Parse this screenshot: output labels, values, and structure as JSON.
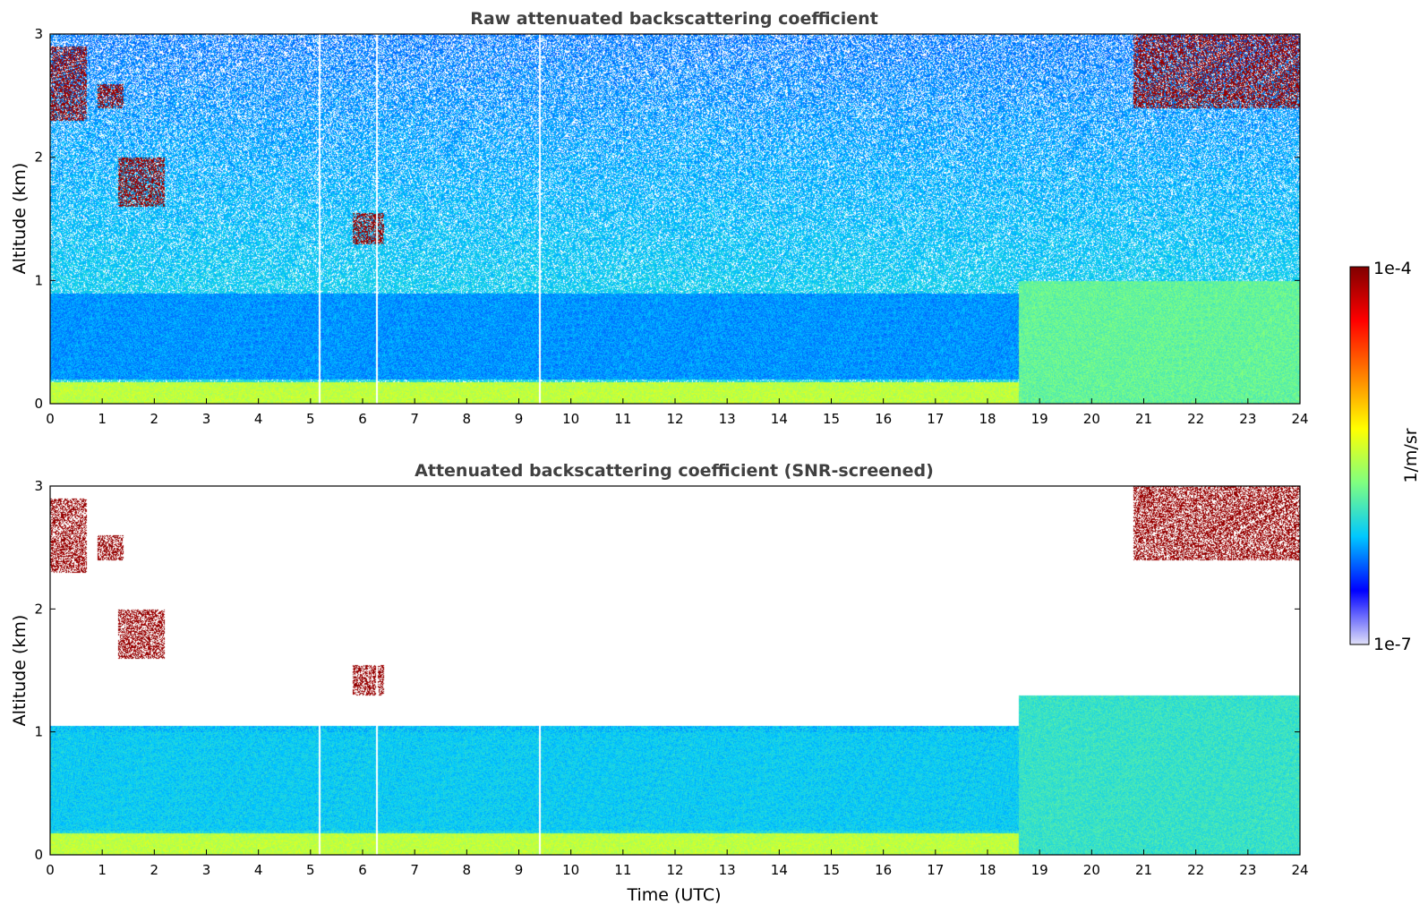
{
  "chart_data": [
    {
      "type": "heatmap",
      "title": "Raw attenuated backscattering coefficient",
      "xlabel": "",
      "ylabel": "Altitude (km)",
      "xlim": [
        0,
        24
      ],
      "ylim": [
        0,
        3
      ],
      "x_ticks": [
        "0",
        "1",
        "2",
        "3",
        "4",
        "5",
        "6",
        "7",
        "8",
        "9",
        "10",
        "11",
        "12",
        "13",
        "14",
        "15",
        "16",
        "17",
        "18",
        "19",
        "20",
        "21",
        "22",
        "23",
        "24"
      ],
      "y_ticks": [
        "0",
        "1",
        "2",
        "3"
      ],
      "screened": false,
      "gaps_utc": [
        5.15,
        6.25,
        9.38
      ],
      "features": [
        {
          "kind": "surface_layer",
          "x": [
            0,
            24
          ],
          "y": [
            0,
            0.18
          ],
          "level": 0.5
        },
        {
          "kind": "boundary_layer",
          "x": [
            0,
            18.6
          ],
          "y": [
            0.2,
            0.9
          ],
          "level": 0.25
        },
        {
          "kind": "boundary_layer",
          "x": [
            18.6,
            24
          ],
          "y": [
            0,
            1.0
          ],
          "level": 0.4
        },
        {
          "kind": "cloud",
          "x": [
            0,
            0.7
          ],
          "y": [
            2.3,
            2.9
          ],
          "level": 0.95
        },
        {
          "kind": "cloud",
          "x": [
            0.9,
            1.4
          ],
          "y": [
            2.4,
            2.6
          ],
          "level": 0.95
        },
        {
          "kind": "cloud",
          "x": [
            1.3,
            2.2
          ],
          "y": [
            1.6,
            2.0
          ],
          "level": 0.95
        },
        {
          "kind": "cloud",
          "x": [
            5.8,
            6.4
          ],
          "y": [
            1.3,
            1.55
          ],
          "level": 0.95
        },
        {
          "kind": "cloud",
          "x": [
            20.8,
            24
          ],
          "y": [
            2.4,
            3.0
          ],
          "level": 0.95
        }
      ]
    },
    {
      "type": "heatmap",
      "title": "Attenuated backscattering coefficient (SNR-screened)",
      "xlabel": "Time (UTC)",
      "ylabel": "Altitude (km)",
      "xlim": [
        0,
        24
      ],
      "ylim": [
        0,
        3
      ],
      "x_ticks": [
        "0",
        "1",
        "2",
        "3",
        "4",
        "5",
        "6",
        "7",
        "8",
        "9",
        "10",
        "11",
        "12",
        "13",
        "14",
        "15",
        "16",
        "17",
        "18",
        "19",
        "20",
        "21",
        "22",
        "23",
        "24"
      ],
      "y_ticks": [
        "0",
        "1",
        "2",
        "3"
      ],
      "screened": true,
      "gaps_utc": [
        5.15,
        6.25,
        9.38
      ],
      "features": [
        {
          "kind": "surface_layer",
          "x": [
            0,
            24
          ],
          "y": [
            0,
            0.18
          ],
          "level": 0.5
        },
        {
          "kind": "boundary_layer",
          "x": [
            0,
            18.6
          ],
          "y": [
            0.2,
            1.0
          ],
          "level": 0.3
        },
        {
          "kind": "boundary_layer",
          "x": [
            18.6,
            24
          ],
          "y": [
            0,
            1.3
          ],
          "level": 0.35
        },
        {
          "kind": "cloud",
          "x": [
            0,
            0.7
          ],
          "y": [
            2.3,
            2.9
          ],
          "level": 0.95
        },
        {
          "kind": "cloud",
          "x": [
            0.9,
            1.4
          ],
          "y": [
            2.4,
            2.6
          ],
          "level": 0.95
        },
        {
          "kind": "cloud",
          "x": [
            1.3,
            2.2
          ],
          "y": [
            1.6,
            2.0
          ],
          "level": 0.95
        },
        {
          "kind": "cloud",
          "x": [
            5.8,
            6.4
          ],
          "y": [
            1.3,
            1.55
          ],
          "level": 0.95
        },
        {
          "kind": "cloud",
          "x": [
            20.8,
            24
          ],
          "y": [
            2.4,
            3.0
          ],
          "level": 0.95
        }
      ]
    }
  ],
  "colorbar": {
    "label": "1/m/sr",
    "max_label": "1e-4",
    "min_label": "1e-7",
    "scale": "log",
    "range": [
      1e-07,
      0.0001
    ],
    "colormap": [
      "#e0e0f8",
      "#0000ff",
      "#00c8ff",
      "#80ff80",
      "#ffff00",
      "#ff8000",
      "#ff0000",
      "#800000"
    ]
  }
}
